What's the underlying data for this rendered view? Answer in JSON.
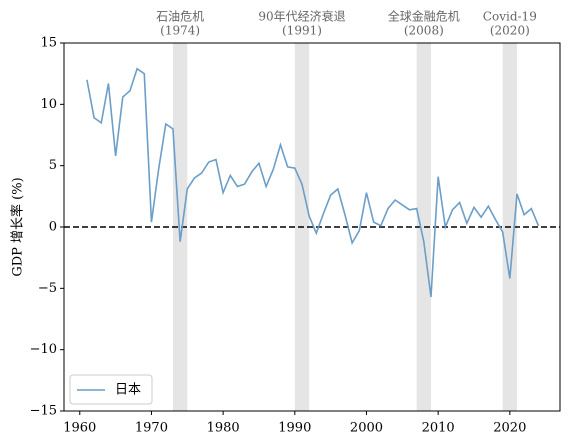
{
  "chart_data": {
    "type": "line",
    "ylabel": "GDP 增长率 (%)",
    "x": [
      1961,
      1962,
      1963,
      1964,
      1965,
      1966,
      1967,
      1968,
      1969,
      1970,
      1971,
      1972,
      1973,
      1974,
      1975,
      1976,
      1977,
      1978,
      1979,
      1980,
      1981,
      1982,
      1983,
      1984,
      1985,
      1986,
      1987,
      1988,
      1989,
      1990,
      1991,
      1992,
      1993,
      1994,
      1995,
      1996,
      1997,
      1998,
      1999,
      2000,
      2001,
      2002,
      2003,
      2004,
      2005,
      2006,
      2007,
      2008,
      2009,
      2010,
      2011,
      2012,
      2013,
      2014,
      2015,
      2016,
      2017,
      2018,
      2019,
      2020,
      2021,
      2022,
      2023,
      2024
    ],
    "series": [
      {
        "name": "日本",
        "color": "#6b9ec8",
        "values": [
          12.0,
          8.9,
          8.5,
          11.7,
          5.8,
          10.6,
          11.1,
          12.9,
          12.5,
          0.4,
          4.7,
          8.4,
          8.0,
          -1.2,
          3.1,
          4.0,
          4.4,
          5.3,
          5.5,
          2.8,
          4.2,
          3.3,
          3.5,
          4.5,
          5.2,
          3.3,
          4.7,
          6.7,
          4.9,
          4.8,
          3.5,
          0.9,
          -0.5,
          1.1,
          2.6,
          3.1,
          1.0,
          -1.3,
          -0.3,
          2.8,
          0.4,
          0.1,
          1.5,
          2.2,
          1.8,
          1.4,
          1.5,
          -1.2,
          -5.7,
          4.1,
          0.0,
          1.4,
          2.0,
          0.3,
          1.6,
          0.8,
          1.7,
          0.6,
          -0.4,
          -4.2,
          2.7,
          1.0,
          1.5,
          0.1
        ]
      }
    ],
    "xlim": [
      1957.8,
      2027
    ],
    "xticks": [
      1960,
      1970,
      1980,
      1990,
      2000,
      2010,
      2020
    ],
    "ylim": [
      -15,
      15
    ],
    "yticks": [
      {
        "value": -15,
        "label": "−15"
      },
      {
        "value": -10,
        "label": "−10"
      },
      {
        "value": -5,
        "label": "−5"
      },
      0,
      5,
      10,
      15
    ],
    "hline": 0,
    "legend": "lower left",
    "annotations": [
      {
        "label": "石油危机",
        "sub": "(1974)",
        "span": [
          1973,
          1975
        ]
      },
      {
        "label": "90年代经济衰退",
        "sub": "(1991)",
        "span": [
          1990,
          1992
        ]
      },
      {
        "label": "全球金融危机",
        "sub": "(2008)",
        "span": [
          2007,
          2009
        ]
      },
      {
        "label": "Covid-19",
        "sub": "(2020)",
        "span": [
          2019,
          2021
        ]
      }
    ]
  }
}
